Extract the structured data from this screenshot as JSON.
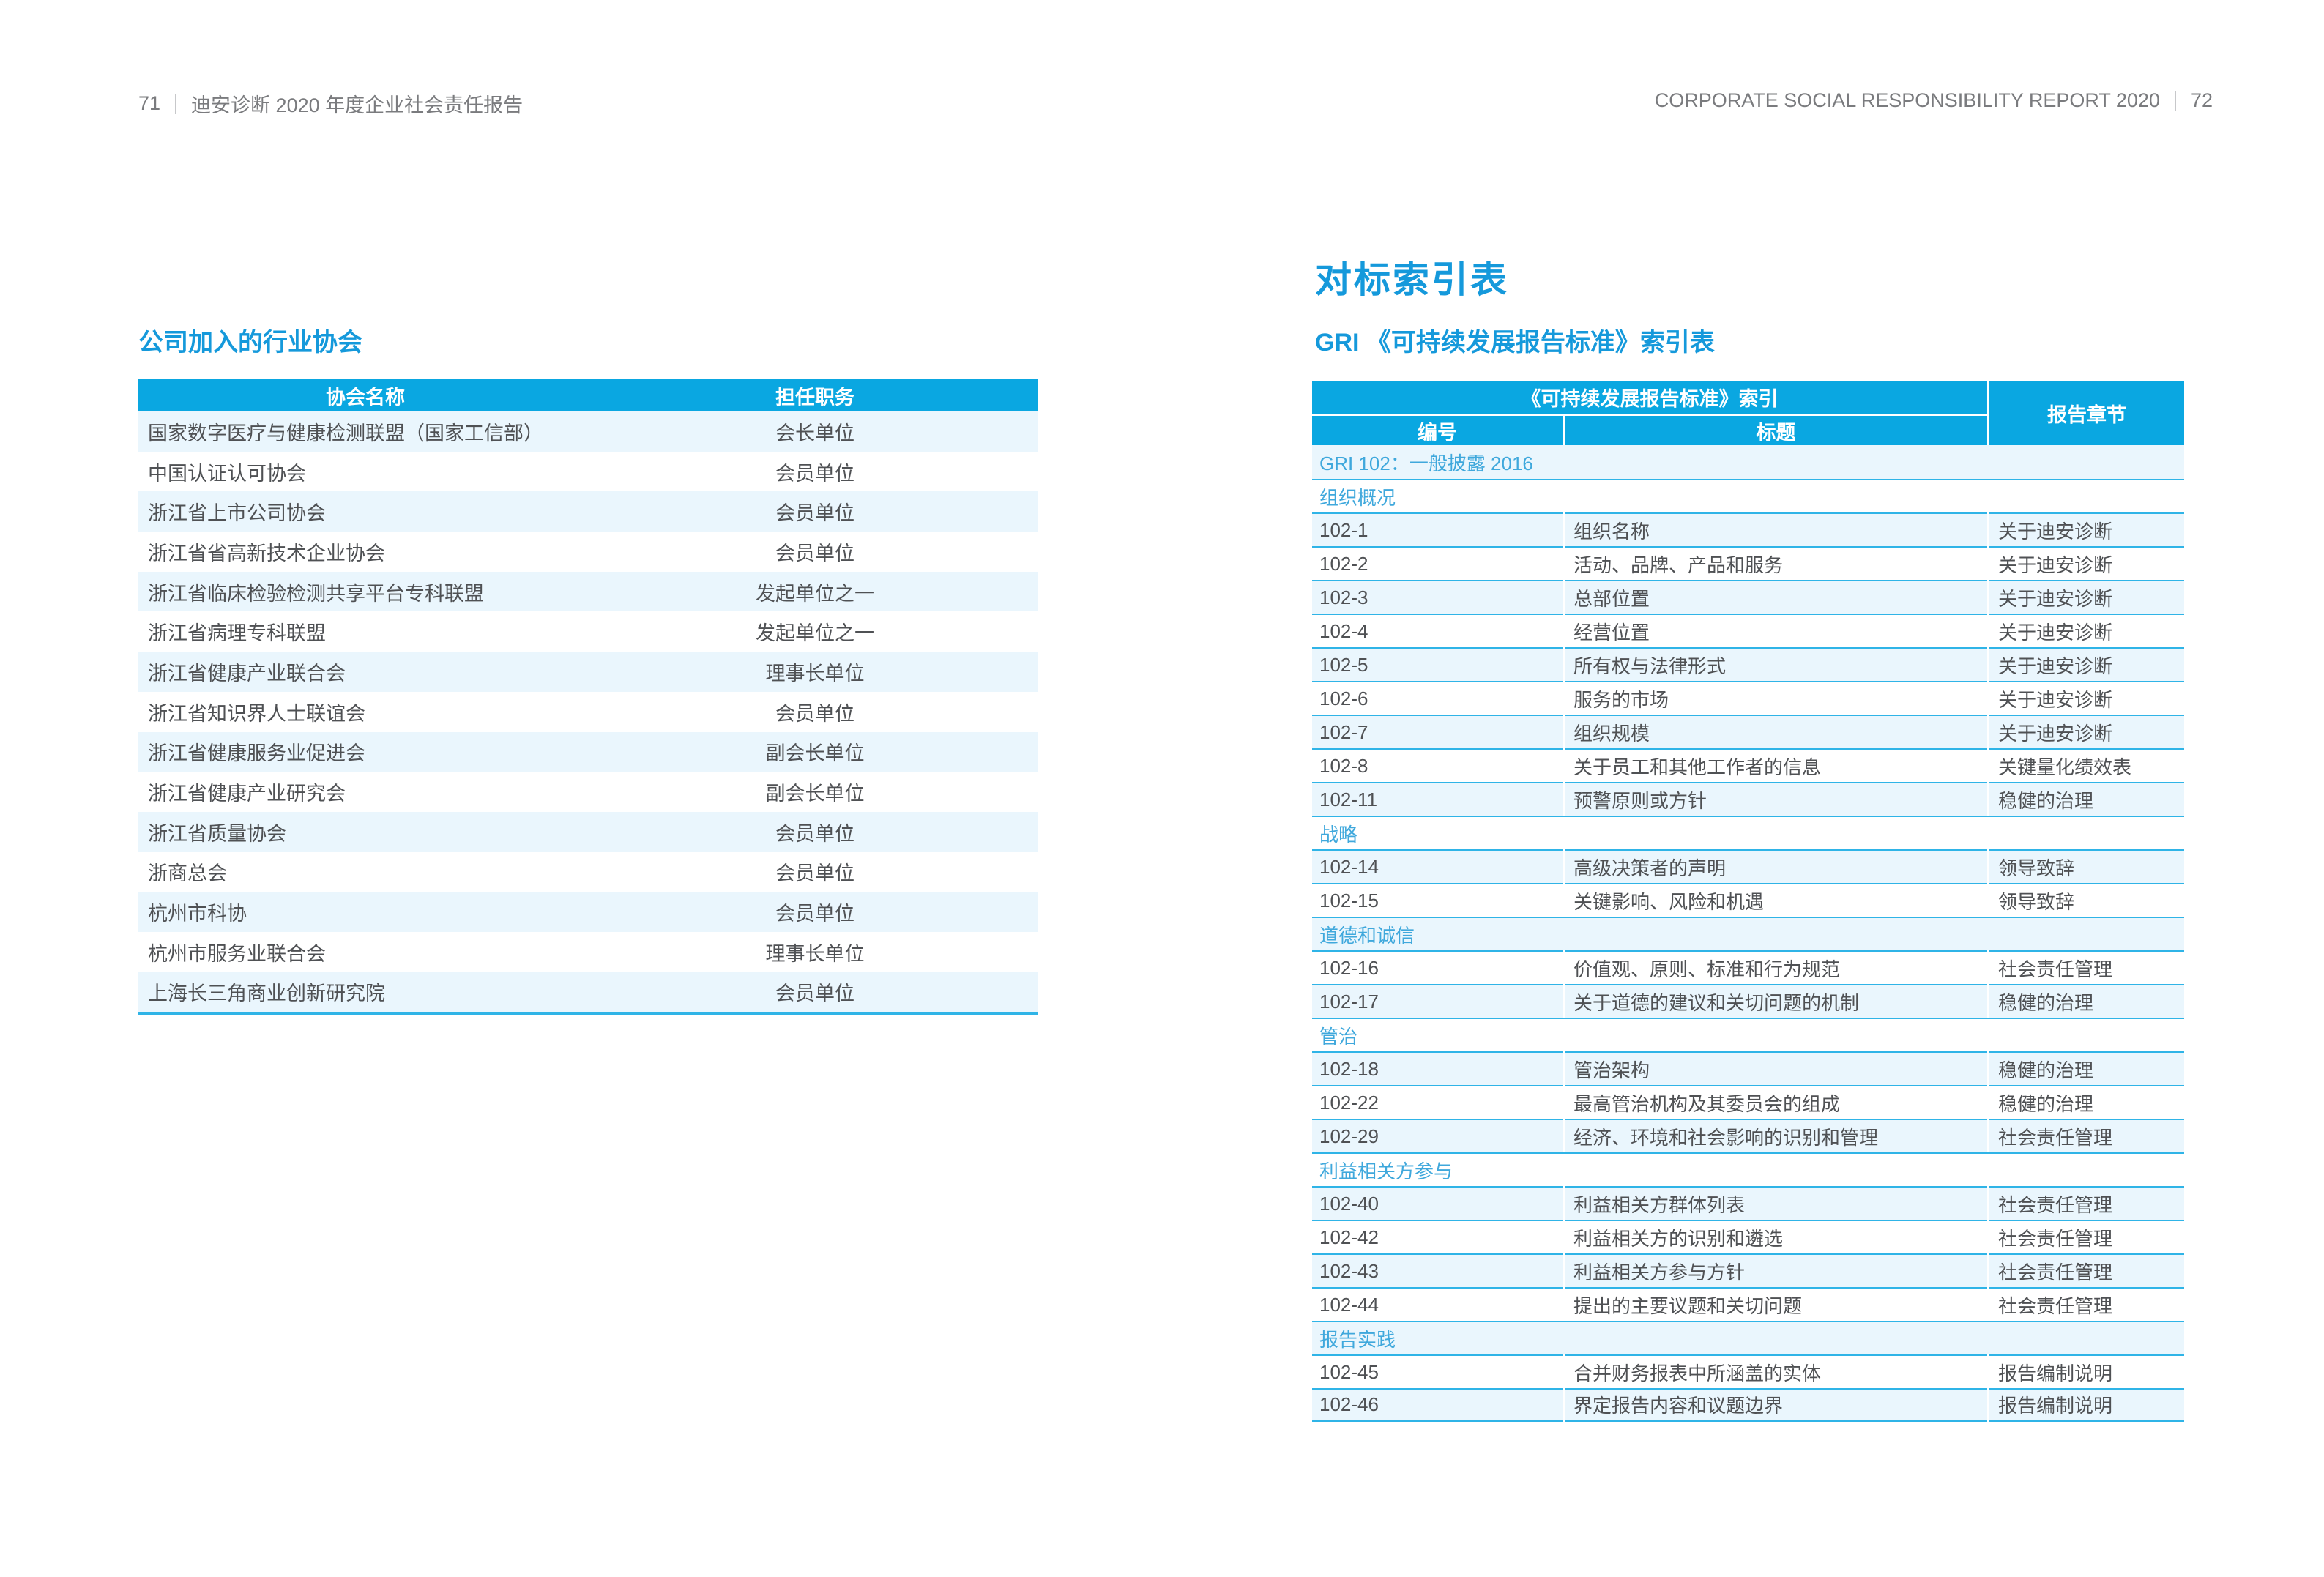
{
  "colors": {
    "cyan": "#0AA7E1",
    "light_row": "#EAF6FD",
    "sep": "#2FB4E7",
    "title_blue": "#1599DB",
    "section_blue": "#3FA8DC",
    "body_text": "#4F5154",
    "muted_text": "#7A7B7E",
    "bar_gray": "#C7C8CA"
  },
  "header_left": {
    "page_number": "71",
    "title": "迪安诊断 2020 年度企业社会责任报告"
  },
  "header_right": {
    "title": "CORPORATE SOCIAL RESPONSIBILITY REPORT 2020",
    "page_number": "72"
  },
  "left_section": {
    "title": "公司加入的行业协会",
    "table": {
      "columns": [
        "协会名称",
        "担任职务"
      ],
      "rows": [
        {
          "name": "国家数字医疗与健康检测联盟（国家工信部）",
          "role": "会长单位"
        },
        {
          "name": "中国认证认可协会",
          "role": "会员单位"
        },
        {
          "name": "浙江省上市公司协会",
          "role": "会员单位"
        },
        {
          "name": "浙江省省高新技术企业协会",
          "role": "会员单位"
        },
        {
          "name": "浙江省临床检验检测共享平台专科联盟",
          "role": "发起单位之一"
        },
        {
          "name": "浙江省病理专科联盟",
          "role": "发起单位之一"
        },
        {
          "name": "浙江省健康产业联合会",
          "role": "理事长单位"
        },
        {
          "name": "浙江省知识界人士联谊会",
          "role": "会员单位"
        },
        {
          "name": "浙江省健康服务业促进会",
          "role": "副会长单位"
        },
        {
          "name": "浙江省健康产业研究会",
          "role": "副会长单位"
        },
        {
          "name": "浙江省质量协会",
          "role": "会员单位"
        },
        {
          "name": "浙商总会",
          "role": "会员单位"
        },
        {
          "name": "杭州市科协",
          "role": "会员单位"
        },
        {
          "name": "杭州市服务业联合会",
          "role": "理事长单位"
        },
        {
          "name": "上海长三角商业创新研究院",
          "role": "会员单位"
        }
      ]
    }
  },
  "right_section": {
    "page_title": "对标索引表",
    "subtitle": "GRI 《可持续发展报告标准》索引表",
    "table": {
      "header": {
        "group": "《可持续发展报告标准》索引",
        "col_no": "编号",
        "col_title": "标题",
        "col_chapter": "报告章节"
      },
      "rows": [
        {
          "type": "section",
          "label": "GRI 102：一般披露 2016"
        },
        {
          "type": "section",
          "label": "组织概况"
        },
        {
          "type": "item",
          "no": "102-1",
          "title": "组织名称",
          "chapter": "关于迪安诊断"
        },
        {
          "type": "item",
          "no": "102-2",
          "title": "活动、品牌、产品和服务",
          "chapter": "关于迪安诊断"
        },
        {
          "type": "item",
          "no": "102-3",
          "title": "总部位置",
          "chapter": "关于迪安诊断"
        },
        {
          "type": "item",
          "no": "102-4",
          "title": "经营位置",
          "chapter": "关于迪安诊断"
        },
        {
          "type": "item",
          "no": "102-5",
          "title": "所有权与法律形式",
          "chapter": "关于迪安诊断"
        },
        {
          "type": "item",
          "no": "102-6",
          "title": "服务的市场",
          "chapter": "关于迪安诊断"
        },
        {
          "type": "item",
          "no": "102-7",
          "title": "组织规模",
          "chapter": "关于迪安诊断"
        },
        {
          "type": "item",
          "no": "102-8",
          "title": "关于员工和其他工作者的信息",
          "chapter": "关键量化绩效表"
        },
        {
          "type": "item",
          "no": "102-11",
          "title": "预警原则或方针",
          "chapter": "稳健的治理"
        },
        {
          "type": "section",
          "label": "战略"
        },
        {
          "type": "item",
          "no": "102-14",
          "title": "高级决策者的声明",
          "chapter": "领导致辞"
        },
        {
          "type": "item",
          "no": "102-15",
          "title": "关键影响、风险和机遇",
          "chapter": "领导致辞"
        },
        {
          "type": "section",
          "label": "道德和诚信"
        },
        {
          "type": "item",
          "no": "102-16",
          "title": "价值观、原则、标准和行为规范",
          "chapter": "社会责任管理"
        },
        {
          "type": "item",
          "no": "102-17",
          "title": "关于道德的建议和关切问题的机制",
          "chapter": "稳健的治理"
        },
        {
          "type": "section",
          "label": "管治"
        },
        {
          "type": "item",
          "no": "102-18",
          "title": "管治架构",
          "chapter": "稳健的治理"
        },
        {
          "type": "item",
          "no": "102-22",
          "title": "最高管治机构及其委员会的组成",
          "chapter": "稳健的治理"
        },
        {
          "type": "item",
          "no": "102-29",
          "title": "经济、环境和社会影响的识别和管理",
          "chapter": "社会责任管理"
        },
        {
          "type": "section",
          "label": "利益相关方参与"
        },
        {
          "type": "item",
          "no": "102-40",
          "title": "利益相关方群体列表",
          "chapter": "社会责任管理"
        },
        {
          "type": "item",
          "no": "102-42",
          "title": "利益相关方的识别和遴选",
          "chapter": "社会责任管理"
        },
        {
          "type": "item",
          "no": "102-43",
          "title": "利益相关方参与方针",
          "chapter": "社会责任管理"
        },
        {
          "type": "item",
          "no": "102-44",
          "title": "提出的主要议题和关切问题",
          "chapter": "社会责任管理"
        },
        {
          "type": "section",
          "label": "报告实践"
        },
        {
          "type": "item",
          "no": "102-45",
          "title": "合并财务报表中所涵盖的实体",
          "chapter": "报告编制说明"
        },
        {
          "type": "item",
          "no": "102-46",
          "title": "界定报告内容和议题边界",
          "chapter": "报告编制说明"
        }
      ]
    }
  }
}
